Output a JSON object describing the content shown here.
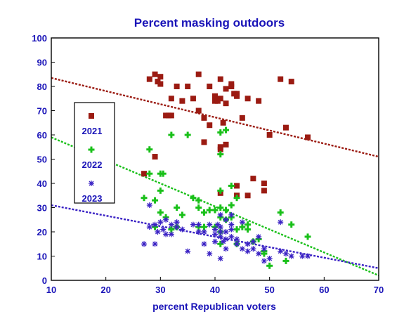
{
  "colors": {
    "y2021": "#9b1b12",
    "y2022": "#19c019",
    "y2023": "#3a22c4",
    "text": "#1a14b8"
  },
  "chart_data": {
    "type": "scatter",
    "title": "Percent masking outdoors",
    "xlabel": "percent Republican voters",
    "ylabel": "",
    "xlim": [
      10,
      70
    ],
    "ylim": [
      0,
      100
    ],
    "xticks": [
      10,
      20,
      30,
      40,
      50,
      60,
      70
    ],
    "yticks": [
      0,
      10,
      20,
      30,
      40,
      50,
      60,
      70,
      80,
      90,
      100
    ],
    "grid": false,
    "legend_position": "left",
    "series": [
      {
        "name": "2021",
        "marker": "square",
        "points": [
          [
            27,
            44
          ],
          [
            28,
            83
          ],
          [
            29,
            85
          ],
          [
            29,
            51
          ],
          [
            29.5,
            82
          ],
          [
            30,
            84
          ],
          [
            30,
            81
          ],
          [
            31,
            68
          ],
          [
            31.5,
            68
          ],
          [
            32,
            68
          ],
          [
            32,
            75
          ],
          [
            33,
            80
          ],
          [
            34,
            74
          ],
          [
            35,
            80
          ],
          [
            36,
            75
          ],
          [
            37,
            85
          ],
          [
            37,
            70
          ],
          [
            38,
            57
          ],
          [
            38,
            67
          ],
          [
            39,
            80
          ],
          [
            39,
            64
          ],
          [
            40,
            76
          ],
          [
            40,
            74
          ],
          [
            40.5,
            74
          ],
          [
            41,
            83
          ],
          [
            41,
            75
          ],
          [
            41,
            55
          ],
          [
            41,
            54
          ],
          [
            41,
            36
          ],
          [
            41.5,
            65
          ],
          [
            42,
            73
          ],
          [
            42,
            79
          ],
          [
            42,
            56
          ],
          [
            43,
            80
          ],
          [
            43,
            81
          ],
          [
            43.5,
            77
          ],
          [
            44,
            77
          ],
          [
            44,
            76
          ],
          [
            44,
            39
          ],
          [
            44,
            35
          ],
          [
            45,
            67
          ],
          [
            46,
            75
          ],
          [
            46,
            35
          ],
          [
            47,
            42
          ],
          [
            48,
            74
          ],
          [
            49,
            40
          ],
          [
            49,
            37
          ],
          [
            50,
            60
          ],
          [
            52,
            83
          ],
          [
            53,
            63
          ],
          [
            54,
            82
          ],
          [
            57,
            59
          ]
        ]
      },
      {
        "name": "2022",
        "marker": "plus",
        "points": [
          [
            27,
            34
          ],
          [
            28,
            54
          ],
          [
            28,
            44
          ],
          [
            29,
            33
          ],
          [
            29,
            22
          ],
          [
            30,
            44
          ],
          [
            30,
            37
          ],
          [
            30,
            28
          ],
          [
            30.5,
            44
          ],
          [
            31,
            26
          ],
          [
            32,
            60
          ],
          [
            32,
            21
          ],
          [
            33,
            30
          ],
          [
            33,
            22
          ],
          [
            34,
            27
          ],
          [
            35,
            60
          ],
          [
            36,
            34
          ],
          [
            37,
            33
          ],
          [
            37,
            30
          ],
          [
            37,
            22
          ],
          [
            38,
            28
          ],
          [
            38,
            22
          ],
          [
            39,
            29
          ],
          [
            40,
            29
          ],
          [
            40,
            22
          ],
          [
            41,
            61
          ],
          [
            41,
            52
          ],
          [
            41,
            37
          ],
          [
            41,
            30
          ],
          [
            41,
            26
          ],
          [
            41,
            20
          ],
          [
            41,
            15
          ],
          [
            42,
            62
          ],
          [
            42,
            29
          ],
          [
            42,
            25
          ],
          [
            43,
            39
          ],
          [
            43,
            31
          ],
          [
            43,
            26
          ],
          [
            44,
            34
          ],
          [
            44,
            21
          ],
          [
            44,
            15
          ],
          [
            45,
            22
          ],
          [
            46,
            23
          ],
          [
            46,
            21
          ],
          [
            47,
            16
          ],
          [
            48,
            17
          ],
          [
            49,
            12
          ],
          [
            49,
            11
          ],
          [
            50,
            6
          ],
          [
            52,
            28
          ],
          [
            53,
            8
          ],
          [
            54,
            23
          ],
          [
            57,
            18
          ]
        ]
      },
      {
        "name": "2023",
        "marker": "asterisk",
        "points": [
          [
            27,
            15
          ],
          [
            28,
            31
          ],
          [
            28,
            22
          ],
          [
            29,
            15
          ],
          [
            29,
            23
          ],
          [
            29.5,
            20
          ],
          [
            30,
            24
          ],
          [
            30.5,
            21
          ],
          [
            31,
            25
          ],
          [
            31,
            19
          ],
          [
            32,
            23
          ],
          [
            32,
            19
          ],
          [
            33,
            24
          ],
          [
            33,
            22
          ],
          [
            34,
            21
          ],
          [
            35,
            12
          ],
          [
            36,
            23
          ],
          [
            37,
            23
          ],
          [
            37,
            20
          ],
          [
            38,
            15
          ],
          [
            38,
            20
          ],
          [
            39,
            11
          ],
          [
            39,
            23
          ],
          [
            40,
            21
          ],
          [
            40,
            19
          ],
          [
            40,
            16
          ],
          [
            40.5,
            23
          ],
          [
            41,
            27
          ],
          [
            41,
            22
          ],
          [
            41,
            20
          ],
          [
            41,
            18
          ],
          [
            41,
            9
          ],
          [
            41.5,
            16
          ],
          [
            42,
            25
          ],
          [
            42,
            20
          ],
          [
            42,
            17
          ],
          [
            42,
            13
          ],
          [
            43,
            27
          ],
          [
            43,
            23
          ],
          [
            43,
            21
          ],
          [
            43,
            18
          ],
          [
            44,
            17
          ],
          [
            44,
            15
          ],
          [
            45,
            24
          ],
          [
            45,
            13
          ],
          [
            46,
            15
          ],
          [
            46,
            12
          ],
          [
            47,
            16
          ],
          [
            47,
            13
          ],
          [
            48,
            11
          ],
          [
            48,
            18
          ],
          [
            49,
            13
          ],
          [
            49,
            8
          ],
          [
            50,
            9
          ],
          [
            52,
            24
          ],
          [
            52,
            12
          ],
          [
            53,
            11
          ],
          [
            54,
            10
          ],
          [
            56,
            10
          ],
          [
            57,
            10
          ]
        ]
      }
    ],
    "trendlines": [
      {
        "series": "2021",
        "from": [
          10,
          83.5
        ],
        "to": [
          70,
          51
        ]
      },
      {
        "series": "2022",
        "from": [
          10,
          59
        ],
        "to": [
          70,
          2
        ]
      },
      {
        "series": "2023",
        "from": [
          10,
          31
        ],
        "to": [
          70,
          5
        ]
      }
    ]
  }
}
